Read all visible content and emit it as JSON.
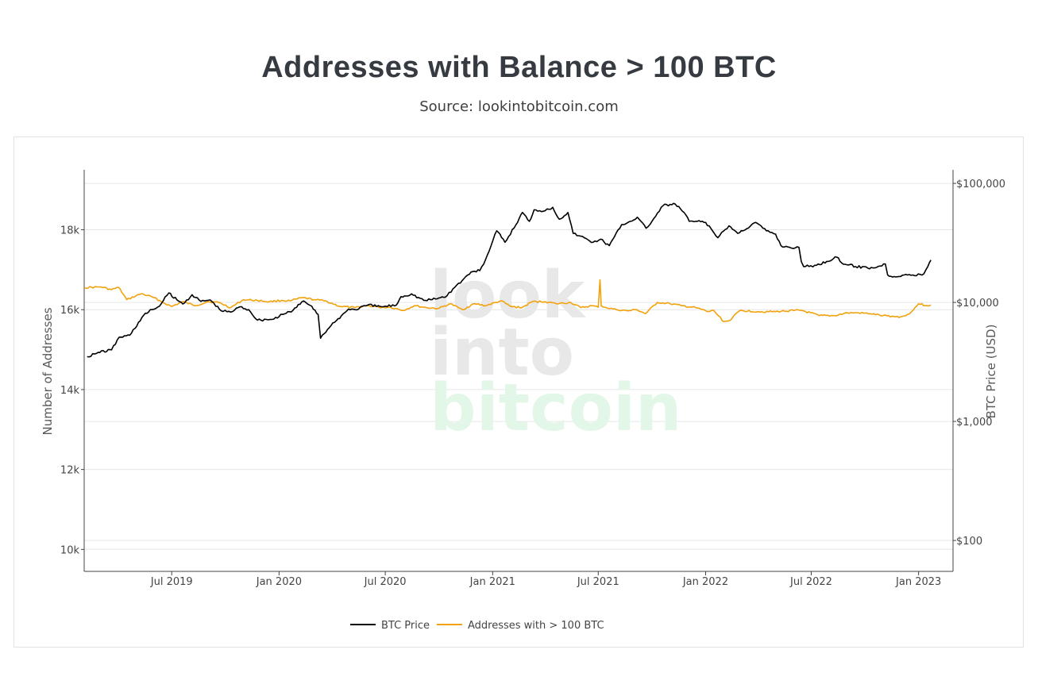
{
  "title": "Addresses with Balance > 100 BTC",
  "subtitle": "Source: lookintobitcoin.com",
  "watermark": [
    "look",
    "into",
    "bitcoin"
  ],
  "colors": {
    "btc_price": "#000000",
    "addresses": "#f2a20c",
    "grid": "#e6e6e6",
    "watermark_gray": "#e8e8e8",
    "watermark_green": "#e3f7e8"
  },
  "chart_data": {
    "type": "line",
    "title": "Addresses with Balance > 100 BTC",
    "x_range": [
      "2019-02-01",
      "2023-03-01"
    ],
    "x_ticks": [
      {
        "date": "2019-07-01",
        "label": "Jul 2019"
      },
      {
        "date": "2020-01-01",
        "label": "Jan 2020"
      },
      {
        "date": "2020-07-01",
        "label": "Jul 2020"
      },
      {
        "date": "2021-01-01",
        "label": "Jan 2021"
      },
      {
        "date": "2021-07-01",
        "label": "Jul 2021"
      },
      {
        "date": "2022-01-01",
        "label": "Jan 2022"
      },
      {
        "date": "2022-07-01",
        "label": "Jul 2022"
      },
      {
        "date": "2023-01-01",
        "label": "Jan 2023"
      }
    ],
    "y_left": {
      "label": "Number of Addresses",
      "range": [
        9450,
        19500
      ],
      "ticks": [
        {
          "value": 10000,
          "label": "10k"
        },
        {
          "value": 12000,
          "label": "12k"
        },
        {
          "value": 14000,
          "label": "14k"
        },
        {
          "value": 16000,
          "label": "16k"
        },
        {
          "value": 18000,
          "label": "18k"
        }
      ]
    },
    "y_right": {
      "label": "BTC Price (USD)",
      "scale": "log",
      "range": [
        55,
        130000
      ],
      "ticks": [
        {
          "value": 100,
          "label": "$100"
        },
        {
          "value": 1000,
          "label": "$1,000"
        },
        {
          "value": 10000,
          "label": "$10,000"
        },
        {
          "value": 100000,
          "label": "$100,000"
        }
      ]
    },
    "legend_position": "bottom-center",
    "grid": true,
    "series": [
      {
        "name": "BTC Price",
        "axis": "right",
        "x": [
          "2019-02-06",
          "2019-02-25",
          "2019-03-20",
          "2019-04-02",
          "2019-04-20",
          "2019-05-14",
          "2019-05-28",
          "2019-06-10",
          "2019-06-26",
          "2019-07-10",
          "2019-07-20",
          "2019-08-05",
          "2019-08-20",
          "2019-09-05",
          "2019-09-24",
          "2019-10-10",
          "2019-10-26",
          "2019-11-10",
          "2019-11-25",
          "2019-12-10",
          "2019-12-20",
          "2020-01-10",
          "2020-01-25",
          "2020-02-12",
          "2020-02-26",
          "2020-03-08",
          "2020-03-12",
          "2020-03-15",
          "2020-04-05",
          "2020-04-29",
          "2020-05-10",
          "2020-06-01",
          "2020-06-25",
          "2020-07-20",
          "2020-07-28",
          "2020-08-15",
          "2020-09-05",
          "2020-09-25",
          "2020-10-15",
          "2020-10-25",
          "2020-11-10",
          "2020-11-25",
          "2020-12-10",
          "2020-12-20",
          "2021-01-08",
          "2021-01-22",
          "2021-02-10",
          "2021-02-21",
          "2021-03-05",
          "2021-03-13",
          "2021-04-01",
          "2021-04-14",
          "2021-04-25",
          "2021-05-10",
          "2021-05-19",
          "2021-06-01",
          "2021-06-22",
          "2021-07-05",
          "2021-07-20",
          "2021-08-10",
          "2021-08-25",
          "2021-09-06",
          "2021-09-21",
          "2021-10-01",
          "2021-10-20",
          "2021-11-10",
          "2021-11-25",
          "2021-12-04",
          "2021-12-15",
          "2022-01-01",
          "2022-01-22",
          "2022-02-10",
          "2022-02-25",
          "2022-03-28",
          "2022-04-15",
          "2022-05-01",
          "2022-05-10",
          "2022-05-25",
          "2022-06-10",
          "2022-06-14",
          "2022-06-18",
          "2022-07-10",
          "2022-08-14",
          "2022-08-22",
          "2022-09-15",
          "2022-10-15",
          "2022-11-05",
          "2022-11-09",
          "2022-11-20",
          "2022-12-10",
          "2022-12-25",
          "2023-01-10",
          "2023-01-14",
          "2023-01-22"
        ],
        "y": [
          3500,
          3800,
          4000,
          5100,
          5300,
          7800,
          8700,
          9300,
          12000,
          10500,
          9700,
          11600,
          10200,
          10500,
          8500,
          8300,
          9200,
          8700,
          7100,
          7200,
          7200,
          8000,
          8600,
          10300,
          9300,
          7900,
          5000,
          5300,
          6800,
          8800,
          8700,
          9500,
          9200,
          9500,
          11200,
          11800,
          10400,
          10700,
          11400,
          13000,
          15300,
          18000,
          18500,
          23000,
          40000,
          32000,
          45000,
          57000,
          48000,
          60000,
          59000,
          63000,
          50000,
          57000,
          38000,
          36000,
          32000,
          34000,
          30000,
          45000,
          48000,
          52000,
          42000,
          48000,
          65000,
          67000,
          57000,
          48000,
          48000,
          47000,
          35000,
          44000,
          38000,
          47000,
          40000,
          37500,
          30000,
          29000,
          29000,
          22000,
          20000,
          20500,
          24000,
          21500,
          20000,
          19500,
          21000,
          17000,
          16500,
          17200,
          16800,
          17400,
          19000,
          22700
        ]
      },
      {
        "name": "Addresses with > 100 BTC",
        "axis": "left",
        "x": [
          "2019-02-01",
          "2019-03-01",
          "2019-03-20",
          "2019-04-01",
          "2019-04-15",
          "2019-05-10",
          "2019-06-01",
          "2019-06-20",
          "2019-07-01",
          "2019-07-20",
          "2019-08-10",
          "2019-09-01",
          "2019-09-20",
          "2019-10-10",
          "2019-11-01",
          "2019-11-25",
          "2019-12-15",
          "2020-01-05",
          "2020-01-20",
          "2020-02-10",
          "2020-03-01",
          "2020-03-20",
          "2020-04-15",
          "2020-05-10",
          "2020-06-01",
          "2020-06-20",
          "2020-07-10",
          "2020-08-01",
          "2020-08-20",
          "2020-09-10",
          "2020-10-01",
          "2020-10-20",
          "2020-11-10",
          "2020-12-01",
          "2020-12-20",
          "2021-01-15",
          "2021-02-01",
          "2021-02-20",
          "2021-03-10",
          "2021-04-01",
          "2021-04-20",
          "2021-05-15",
          "2021-06-01",
          "2021-06-20",
          "2021-07-01",
          "2021-07-04",
          "2021-07-06",
          "2021-07-15",
          "2021-08-01",
          "2021-08-20",
          "2021-09-05",
          "2021-09-20",
          "2021-10-10",
          "2021-11-01",
          "2021-11-20",
          "2021-12-15",
          "2022-01-05",
          "2022-01-15",
          "2022-02-01",
          "2022-02-10",
          "2022-03-01",
          "2022-04-01",
          "2022-05-01",
          "2022-06-01",
          "2022-06-15",
          "2022-07-15",
          "2022-08-10",
          "2022-09-01",
          "2022-09-20",
          "2022-10-10",
          "2022-11-01",
          "2022-11-20",
          "2022-12-01",
          "2022-12-10",
          "2022-12-20",
          "2023-01-01",
          "2023-01-15",
          "2023-01-22"
        ],
        "y": [
          16550,
          16570,
          16500,
          16560,
          16250,
          16400,
          16300,
          16150,
          16080,
          16200,
          16100,
          16200,
          16180,
          16050,
          16250,
          16230,
          16200,
          16230,
          16220,
          16300,
          16250,
          16220,
          16080,
          16050,
          16100,
          16060,
          16060,
          15980,
          16100,
          16050,
          16030,
          16150,
          16000,
          16150,
          16100,
          16220,
          16080,
          16050,
          16200,
          16200,
          16150,
          16180,
          16050,
          16100,
          16060,
          16750,
          16100,
          16050,
          16000,
          15970,
          16000,
          15900,
          16180,
          16150,
          16100,
          16050,
          15950,
          15980,
          15700,
          15720,
          15980,
          15950,
          15950,
          15980,
          15980,
          15850,
          15850,
          15920,
          15920,
          15900,
          15850,
          15830,
          15820,
          15850,
          15950,
          16150,
          16100,
          16120
        ]
      }
    ]
  }
}
